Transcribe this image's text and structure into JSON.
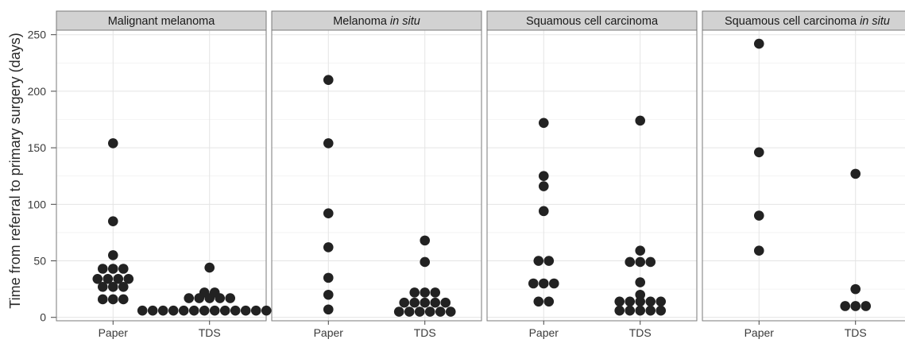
{
  "chart_data": {
    "type": "scatter",
    "ylabel": "Time from referral to primary surgery (days)",
    "xlabel": "",
    "ylim": [
      -3,
      254
    ],
    "yticks": [
      0,
      50,
      100,
      150,
      200,
      250
    ],
    "categories": [
      "Paper",
      "TDS"
    ],
    "grid": true,
    "background": "#ffffff",
    "grid_color": "#e4e4e4",
    "point_color": "#222222",
    "strip_fill": "#d2d2d2",
    "panels": [
      {
        "title": "Malignant melanoma",
        "title_italic": "",
        "series": [
          {
            "name": "Paper",
            "values": [
              154,
              85,
              55,
              43,
              43,
              43,
              34,
              34,
              34,
              34,
              27,
              27,
              27,
              16,
              16,
              16
            ]
          },
          {
            "name": "TDS",
            "values": [
              44,
              22,
              22,
              17,
              17,
              17,
              17,
              17,
              6,
              6,
              6,
              6,
              6,
              6,
              6,
              6,
              6,
              6,
              6,
              6,
              6,
              6
            ]
          }
        ]
      },
      {
        "title": "Melanoma ",
        "title_italic": "in situ",
        "series": [
          {
            "name": "Paper",
            "values": [
              210,
              154,
              92,
              62,
              35,
              20,
              7
            ]
          },
          {
            "name": "TDS",
            "values": [
              68,
              49,
              22,
              22,
              22,
              13,
              13,
              13,
              13,
              13,
              5,
              5,
              5,
              5,
              5,
              5
            ]
          }
        ]
      },
      {
        "title": "Squamous cell carcinoma",
        "title_italic": "",
        "series": [
          {
            "name": "Paper",
            "values": [
              172,
              125,
              116,
              94,
              50,
              50,
              30,
              30,
              30,
              14,
              14
            ]
          },
          {
            "name": "TDS",
            "values": [
              174,
              59,
              49,
              49,
              49,
              31,
              20,
              14,
              14,
              14,
              14,
              14,
              6,
              6,
              6,
              6,
              6
            ]
          }
        ]
      },
      {
        "title": "Squamous cell carcinoma ",
        "title_italic": "in situ",
        "series": [
          {
            "name": "Paper",
            "values": [
              242,
              146,
              90,
              59
            ]
          },
          {
            "name": "TDS",
            "values": [
              127,
              25,
              10,
              10,
              10
            ]
          }
        ]
      }
    ]
  }
}
